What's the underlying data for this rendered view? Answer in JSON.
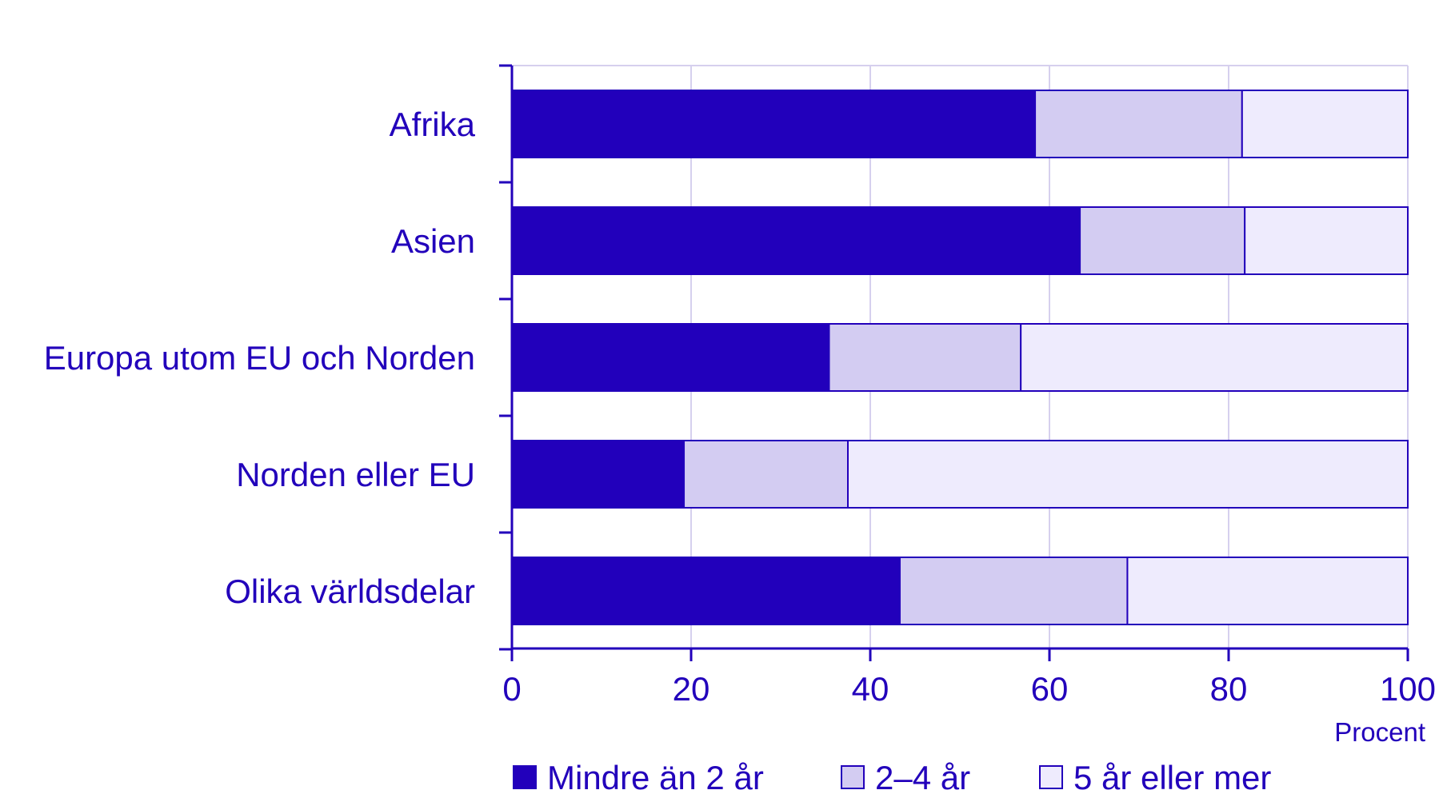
{
  "chart_data": {
    "type": "bar",
    "orientation": "horizontal",
    "stacked": true,
    "categories": [
      "Afrika",
      "Asien",
      "Europa utom EU och Norden",
      "Norden eller EU",
      "Olika världsdelar"
    ],
    "series": [
      {
        "name": "Mindre än 2 år",
        "color": "#2200bb",
        "values": [
          58.4,
          63.4,
          35.4,
          19.2,
          43.3
        ]
      },
      {
        "name": "2–4 år",
        "color": "#d3ccf2",
        "values": [
          23.1,
          18.4,
          21.4,
          18.3,
          25.4
        ]
      },
      {
        "name": "5 år eller mer",
        "color": "#eeebfd",
        "values": [
          18.5,
          18.2,
          43.2,
          62.5,
          31.3
        ]
      }
    ],
    "xlim": [
      0,
      100
    ],
    "xticks": [
      0,
      20,
      40,
      60,
      80,
      100
    ],
    "xlabel": "Procent",
    "grid": true,
    "legend_position": "bottom",
    "accent_color": "#2200bb",
    "grid_color": "#d6d0ee"
  }
}
